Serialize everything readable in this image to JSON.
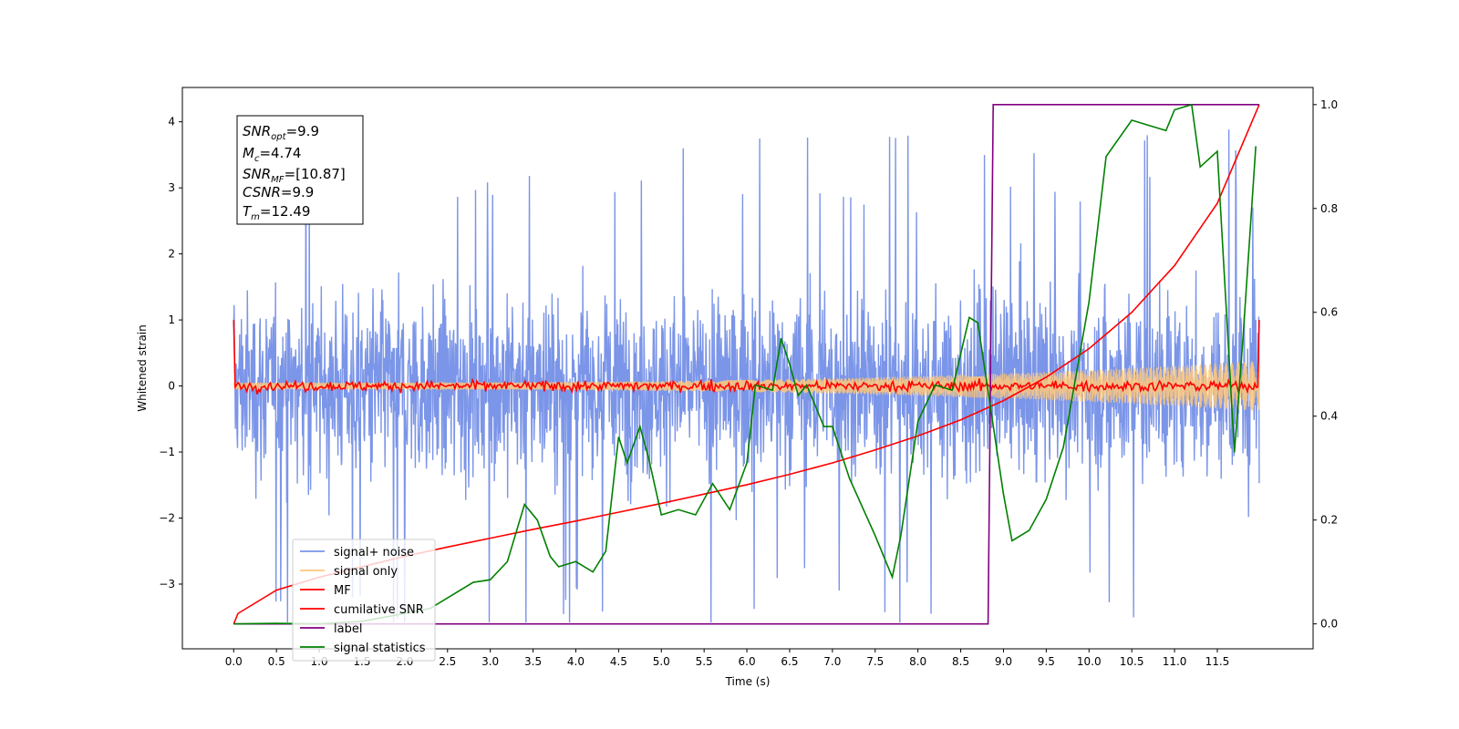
{
  "chart_data": {
    "type": "line",
    "xlabel": "Time (s)",
    "ylabel": "Whitened strain",
    "xlim": [
      -0.6,
      12.62
    ],
    "ylim": [
      -3.98,
      4.52
    ],
    "y2lim": [
      -0.048,
      1.033
    ],
    "x_ticks": [
      "0.0",
      "0.5",
      "1.0",
      "1.5",
      "2.0",
      "2.5",
      "3.0",
      "3.5",
      "4.0",
      "4.5",
      "5.0",
      "5.5",
      "6.0",
      "6.5",
      "7.0",
      "7.5",
      "8.0",
      "8.5",
      "9.0",
      "9.5",
      "10.0",
      "10.5",
      "11.0",
      "11.5"
    ],
    "y_ticks": [
      "−3",
      "−2",
      "−1",
      "0",
      "1",
      "2",
      "3",
      "4"
    ],
    "y2_ticks": [
      "0.0",
      "0.2",
      "0.4",
      "0.6",
      "0.8",
      "1.0"
    ],
    "grid": false,
    "legend_placement": "lower-left",
    "info_box": {
      "snr_opt": {
        "symbol": "SNR",
        "sub": "opt",
        "value": "=9.9"
      },
      "mc": {
        "symbol": "M",
        "sub": "c",
        "value": "=4.74"
      },
      "snr_mf": {
        "symbol": "SNR",
        "sub": "MF",
        "value": "=[10.87]"
      },
      "csnr": {
        "symbol": "CSNR",
        "value": "=9.9"
      },
      "tm": {
        "symbol": "T",
        "sub": "m",
        "value": "=12.49"
      }
    },
    "series": [
      {
        "name": "signal+ noise",
        "color": "#7b95e8",
        "axis": "left",
        "x_range": [
          0.0,
          11.99
        ],
        "envelope_min": -2.0,
        "envelope_max": 2.0,
        "peak_max": 4.17,
        "peak_min": -3.58
      },
      {
        "name": "signal only",
        "color": "#ffc87a",
        "axis": "left",
        "x_range": [
          0.0,
          11.99
        ],
        "amplitude_start": 0.05,
        "amplitude_end": 0.38
      },
      {
        "name": "MF",
        "color": "#ff0000",
        "axis": "left",
        "x_range": [
          0.0,
          11.99
        ],
        "start_value": 1.0,
        "noise_level": 0.1,
        "end_value": 1.0
      },
      {
        "name": "cumilative SNR",
        "color": "#ff0000",
        "axis": "right",
        "x": [
          0.0,
          0.05,
          0.5,
          1.0,
          1.5,
          2.0,
          2.5,
          3.0,
          3.5,
          4.0,
          4.5,
          5.0,
          5.5,
          6.0,
          6.5,
          7.0,
          7.5,
          8.0,
          8.5,
          9.0,
          9.5,
          10.0,
          10.5,
          11.0,
          11.5,
          11.99
        ],
        "y": [
          0.0,
          0.02,
          0.065,
          0.09,
          0.11,
          0.13,
          0.148,
          0.165,
          0.182,
          0.198,
          0.215,
          0.232,
          0.25,
          0.268,
          0.288,
          0.31,
          0.335,
          0.362,
          0.393,
          0.43,
          0.475,
          0.53,
          0.6,
          0.69,
          0.81,
          1.0
        ]
      },
      {
        "name": "label",
        "color": "#800080",
        "axis": "right",
        "x": [
          0.0,
          8.82,
          8.88,
          11.99
        ],
        "y": [
          0.0,
          0.0,
          1.0,
          1.0
        ]
      },
      {
        "name": "signal statistics",
        "color": "#008000",
        "axis": "right",
        "x": [
          0.0,
          0.5,
          1.0,
          1.5,
          2.0,
          2.3,
          2.6,
          2.8,
          3.0,
          3.2,
          3.4,
          3.55,
          3.7,
          3.8,
          4.0,
          4.2,
          4.35,
          4.5,
          4.6,
          4.75,
          4.85,
          5.0,
          5.2,
          5.4,
          5.6,
          5.8,
          6.0,
          6.1,
          6.3,
          6.4,
          6.5,
          6.6,
          6.7,
          6.9,
          7.0,
          7.2,
          7.5,
          7.7,
          7.8,
          8.0,
          8.2,
          8.4,
          8.6,
          8.7,
          8.8,
          9.0,
          9.1,
          9.3,
          9.5,
          9.7,
          10.0,
          10.2,
          10.5,
          10.7,
          10.9,
          11.0,
          11.2,
          11.3,
          11.5,
          11.7,
          11.8,
          11.95
        ],
        "y": [
          0.0,
          0.001,
          0.0,
          0.005,
          0.02,
          0.03,
          0.06,
          0.08,
          0.085,
          0.12,
          0.23,
          0.2,
          0.13,
          0.11,
          0.12,
          0.1,
          0.14,
          0.36,
          0.31,
          0.38,
          0.32,
          0.21,
          0.22,
          0.21,
          0.27,
          0.22,
          0.31,
          0.46,
          0.45,
          0.55,
          0.5,
          0.44,
          0.46,
          0.38,
          0.38,
          0.28,
          0.17,
          0.09,
          0.17,
          0.39,
          0.46,
          0.45,
          0.59,
          0.58,
          0.47,
          0.25,
          0.16,
          0.18,
          0.24,
          0.34,
          0.62,
          0.9,
          0.97,
          0.96,
          0.95,
          0.99,
          1.0,
          0.88,
          0.91,
          0.33,
          0.55,
          0.92
        ]
      }
    ]
  }
}
